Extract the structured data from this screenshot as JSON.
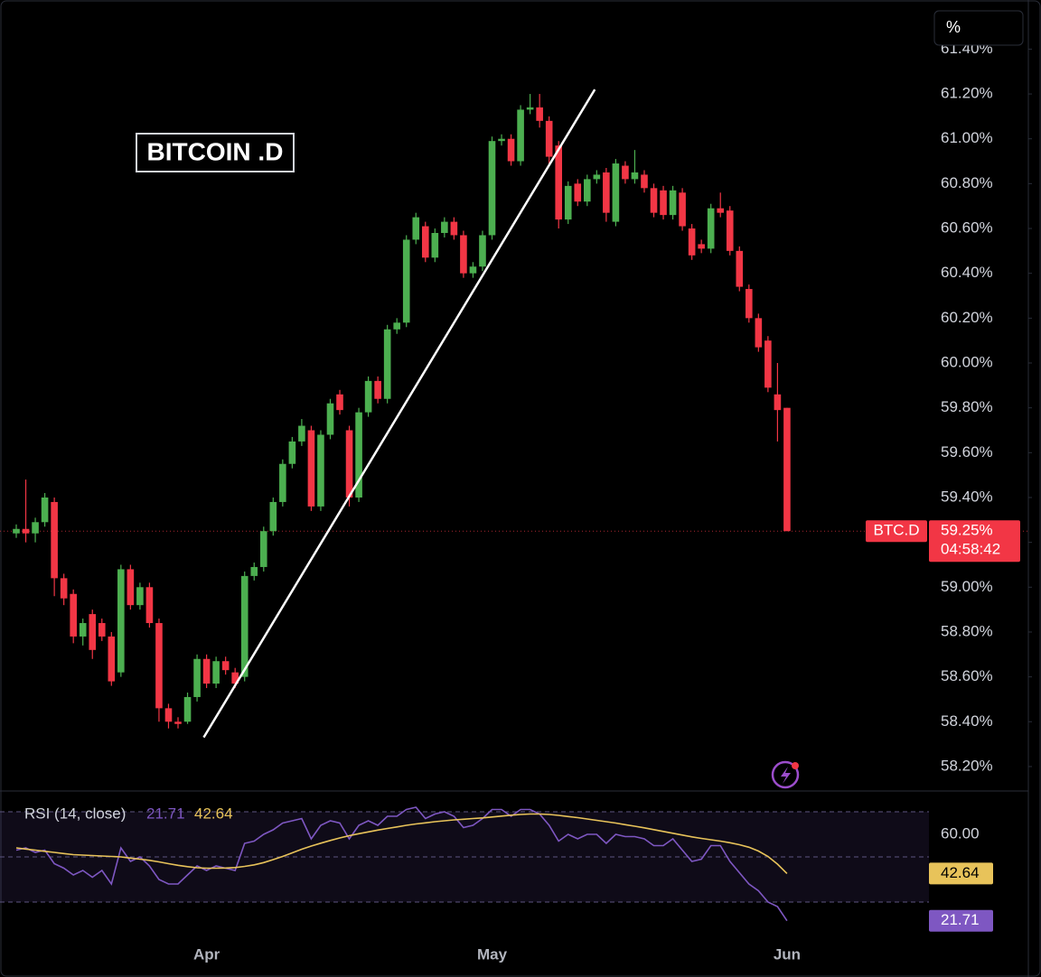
{
  "chart_data": [
    {
      "type": "candlestick",
      "title": "BITCOIN .D",
      "symbol": "BTC.D",
      "axis_unit_button": "%",
      "last_value_label": "59.25%",
      "countdown": "04:58:42",
      "up_color": "#4caf50",
      "down_color": "#f23645",
      "categories": [
        null,
        null,
        null,
        null,
        null,
        null,
        null,
        null,
        null,
        null,
        null,
        null,
        null,
        null,
        null,
        null,
        null,
        null,
        null,
        null,
        "Apr",
        null,
        null,
        null,
        null,
        null,
        null,
        null,
        null,
        null,
        null,
        null,
        null,
        null,
        null,
        null,
        null,
        null,
        null,
        null,
        null,
        null,
        null,
        null,
        null,
        null,
        null,
        null,
        null,
        null,
        "May",
        null,
        null,
        null,
        null,
        null,
        null,
        null,
        null,
        null,
        null,
        null,
        null,
        null,
        null,
        null,
        null,
        null,
        null,
        null,
        null,
        null,
        null,
        null,
        null,
        null,
        null,
        null,
        null,
        null,
        null,
        "Jun"
      ],
      "open": [
        59.24,
        59.26,
        59.24,
        59.29,
        59.38,
        59.04,
        58.97,
        58.78,
        58.88,
        58.84,
        58.78,
        58.62,
        59.08,
        58.92,
        59.0,
        58.84,
        58.46,
        58.4,
        58.4,
        58.51,
        58.68,
        58.57,
        58.67,
        58.62,
        58.6,
        59.05,
        59.09,
        59.25,
        59.38,
        59.55,
        59.65,
        59.7,
        59.36,
        59.68,
        59.86,
        59.7,
        59.4,
        59.78,
        59.92,
        59.84,
        60.15,
        60.18,
        60.55,
        60.61,
        60.47,
        60.58,
        60.63,
        60.57,
        60.4,
        60.43,
        60.57,
        60.99,
        61.0,
        60.9,
        61.13,
        61.14,
        61.08,
        60.97,
        60.64,
        60.8,
        60.72,
        60.82,
        60.85,
        60.63,
        60.88,
        60.82,
        60.84,
        60.78,
        60.77,
        60.66,
        60.76,
        60.6,
        60.53,
        60.51,
        60.69,
        60.68,
        60.5,
        60.33,
        60.2,
        60.1,
        59.86,
        59.8
      ],
      "high": [
        59.28,
        59.48,
        59.31,
        59.42,
        59.4,
        59.06,
        58.99,
        58.86,
        58.9,
        58.86,
        58.8,
        59.1,
        59.1,
        59.02,
        59.02,
        58.86,
        58.48,
        58.42,
        58.53,
        58.7,
        58.7,
        58.69,
        58.69,
        58.64,
        59.07,
        59.11,
        59.27,
        59.4,
        59.57,
        59.67,
        59.75,
        59.72,
        59.7,
        59.84,
        59.88,
        59.72,
        59.8,
        59.94,
        59.94,
        60.17,
        60.2,
        60.57,
        60.67,
        60.63,
        60.6,
        60.65,
        60.65,
        60.59,
        60.45,
        60.59,
        61.01,
        61.02,
        61.02,
        61.15,
        61.2,
        61.2,
        61.1,
        60.99,
        60.81,
        60.82,
        60.84,
        60.86,
        60.87,
        60.91,
        60.9,
        60.95,
        60.86,
        60.8,
        60.79,
        60.79,
        60.78,
        60.62,
        60.55,
        60.71,
        60.76,
        60.7,
        60.52,
        60.35,
        60.22,
        60.12,
        60.0,
        59.8
      ],
      "low": [
        59.22,
        59.2,
        59.2,
        59.27,
        58.96,
        58.92,
        58.75,
        58.74,
        58.68,
        58.76,
        58.56,
        58.6,
        58.9,
        58.9,
        58.82,
        58.4,
        58.37,
        58.37,
        58.39,
        58.49,
        58.55,
        58.55,
        58.61,
        58.55,
        58.58,
        59.03,
        59.07,
        59.23,
        59.36,
        59.53,
        59.63,
        59.34,
        59.34,
        59.66,
        59.77,
        59.36,
        59.38,
        59.76,
        59.82,
        59.82,
        60.13,
        60.16,
        60.53,
        60.45,
        60.45,
        60.56,
        60.55,
        60.38,
        60.38,
        60.41,
        60.55,
        60.97,
        60.88,
        60.88,
        61.11,
        61.05,
        60.88,
        60.6,
        60.62,
        60.7,
        60.7,
        60.8,
        60.63,
        60.61,
        60.8,
        60.8,
        60.76,
        60.65,
        60.64,
        60.64,
        60.59,
        60.46,
        60.49,
        60.49,
        60.65,
        60.48,
        60.32,
        60.18,
        60.05,
        59.87,
        59.65,
        59.25
      ],
      "close": [
        59.26,
        59.24,
        59.29,
        59.4,
        59.04,
        58.95,
        58.78,
        58.84,
        58.72,
        58.78,
        58.58,
        59.08,
        58.92,
        59.0,
        58.84,
        58.46,
        58.4,
        58.39,
        58.51,
        58.68,
        58.57,
        58.67,
        58.63,
        58.57,
        59.05,
        59.09,
        59.25,
        59.38,
        59.55,
        59.65,
        59.72,
        59.36,
        59.68,
        59.82,
        59.79,
        59.4,
        59.78,
        59.92,
        59.84,
        60.15,
        60.18,
        60.55,
        60.65,
        60.47,
        60.58,
        60.63,
        60.57,
        60.4,
        60.43,
        60.57,
        60.99,
        61.0,
        60.9,
        61.13,
        61.14,
        61.08,
        60.92,
        60.64,
        60.79,
        60.72,
        60.82,
        60.84,
        60.67,
        60.89,
        60.82,
        60.85,
        60.78,
        60.67,
        60.66,
        60.77,
        60.61,
        60.48,
        60.51,
        60.69,
        60.67,
        60.5,
        60.34,
        60.2,
        60.07,
        59.89,
        59.79,
        59.25
      ],
      "trendline": {
        "x": [
          19.7,
          60.8
        ],
        "y": [
          58.33,
          61.22
        ],
        "color": "#ffffff"
      },
      "ylim": [
        58.095,
        61.458
      ],
      "yticks": [
        {
          "value": 58.2,
          "label": "58.20%"
        },
        {
          "value": 58.4,
          "label": "58.40%"
        },
        {
          "value": 58.6,
          "label": "58.60%"
        },
        {
          "value": 58.8,
          "label": "58.80%"
        },
        {
          "value": 59.0,
          "label": "59.00%"
        },
        {
          "value": 59.2,
          "label": "59.20%"
        },
        {
          "value": 59.4,
          "label": "59.40%"
        },
        {
          "value": 59.6,
          "label": "59.60%"
        },
        {
          "value": 59.8,
          "label": "59.80%"
        },
        {
          "value": 60.0,
          "label": "60.00%"
        },
        {
          "value": 60.2,
          "label": "60.20%"
        },
        {
          "value": 60.4,
          "label": "60.40%"
        },
        {
          "value": 60.6,
          "label": "60.60%"
        },
        {
          "value": 60.8,
          "label": "60.80%"
        },
        {
          "value": 61.0,
          "label": "61.00%"
        },
        {
          "value": 61.2,
          "label": "61.20%"
        },
        {
          "value": 61.4,
          "label": "61.40%"
        }
      ],
      "grid": false
    },
    {
      "type": "line",
      "title": "RSI (14, close)",
      "series": [
        {
          "color": "#7e57c2",
          "values": [
            53,
            54,
            52,
            53,
            47,
            45,
            42,
            44,
            41,
            44,
            38,
            54,
            48,
            50,
            46,
            40,
            38,
            38,
            42,
            46,
            44,
            46,
            45,
            44,
            56,
            57,
            60,
            62,
            65,
            66,
            67,
            58,
            64,
            66,
            65,
            58,
            64,
            66,
            64,
            68,
            68,
            71,
            72,
            67,
            69,
            70,
            68,
            63,
            64,
            67,
            71,
            71,
            68,
            71,
            71,
            69,
            64,
            57,
            60,
            58,
            60,
            60,
            56,
            60,
            59,
            59,
            58,
            55,
            55,
            58,
            53,
            48,
            49,
            55,
            55,
            48,
            43,
            38,
            35,
            30,
            28,
            21.71
          ]
        },
        {
          "color": "#e8c35a",
          "values": [
            54,
            53.5,
            53,
            52.5,
            52,
            51.5,
            51,
            50.8,
            50.6,
            50.4,
            50.2,
            50,
            49.5,
            49,
            48.5,
            47.8,
            47,
            46.3,
            45.7,
            45.2,
            45,
            45,
            45.1,
            45.3,
            45.8,
            46.5,
            47.5,
            48.8,
            50.2,
            51.8,
            53.4,
            54.8,
            56.1,
            57.3,
            58.4,
            59.4,
            60.3,
            61.1,
            61.9,
            62.6,
            63.3,
            64,
            64.6,
            65.1,
            65.6,
            66,
            66.4,
            66.7,
            67,
            67.3,
            67.7,
            68.1,
            68.5,
            68.8,
            69,
            69,
            68.8,
            68.4,
            67.9,
            67.4,
            66.8,
            66.2,
            65.6,
            65,
            64.3,
            63.6,
            62.9,
            62.1,
            61.3,
            60.5,
            59.7,
            58.9,
            58.2,
            57.6,
            57,
            56.3,
            55.4,
            54.3,
            52.6,
            50.2,
            46.8,
            42.64
          ]
        }
      ],
      "band_lines": [
        30,
        50,
        70
      ],
      "ylim": [
        13.6,
        77.6
      ],
      "yticks": [
        {
          "value": 60,
          "label": "60.00"
        }
      ]
    }
  ]
}
